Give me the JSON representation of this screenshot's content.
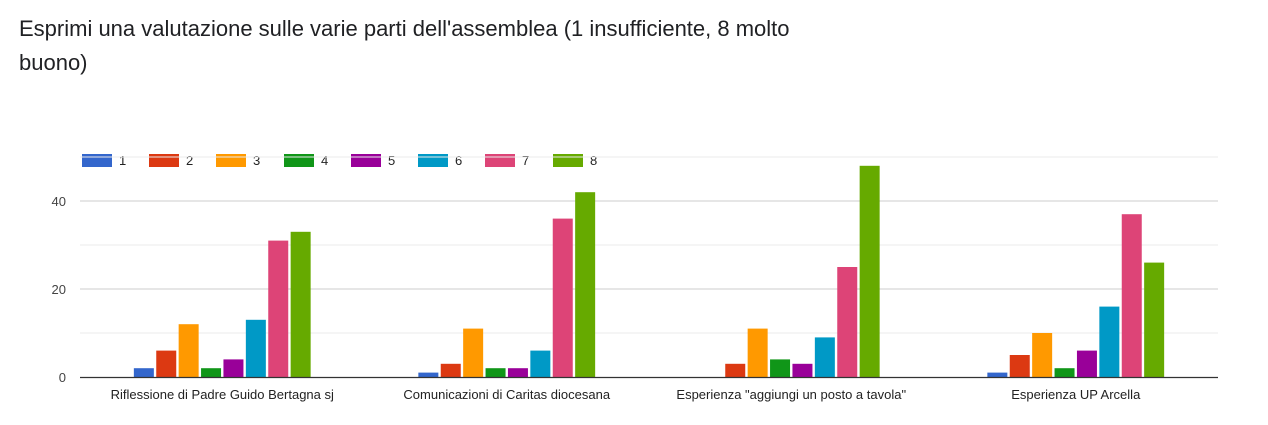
{
  "title": "Esprimi una valutazione sulle varie parti dell'assemblea (1 insufficiente, 8 molto buono)",
  "chart_data": {
    "type": "bar",
    "categories": [
      "Riflessione di Padre Guido Bertagna sj",
      "Comunicazioni di Caritas diocesana",
      "Esperienza \"aggiungi un posto a tavola\"",
      "Esperienza UP Arcella"
    ],
    "series": [
      {
        "name": "1",
        "color": "#3366cc",
        "values": [
          2,
          1,
          0,
          1
        ]
      },
      {
        "name": "2",
        "color": "#dc3912",
        "values": [
          6,
          3,
          3,
          5
        ]
      },
      {
        "name": "3",
        "color": "#ff9900",
        "values": [
          12,
          11,
          11,
          10
        ]
      },
      {
        "name": "4",
        "color": "#109618",
        "values": [
          2,
          2,
          4,
          2
        ]
      },
      {
        "name": "5",
        "color": "#990099",
        "values": [
          4,
          2,
          3,
          6
        ]
      },
      {
        "name": "6",
        "color": "#0099c6",
        "values": [
          13,
          6,
          9,
          16
        ]
      },
      {
        "name": "7",
        "color": "#dd4477",
        "values": [
          31,
          36,
          25,
          37
        ]
      },
      {
        "name": "8",
        "color": "#66aa00",
        "values": [
          33,
          42,
          48,
          26
        ]
      }
    ],
    "yticks": [
      0,
      20,
      40
    ],
    "ylim": [
      0,
      50
    ],
    "legend": "top-left",
    "grid": true
  }
}
